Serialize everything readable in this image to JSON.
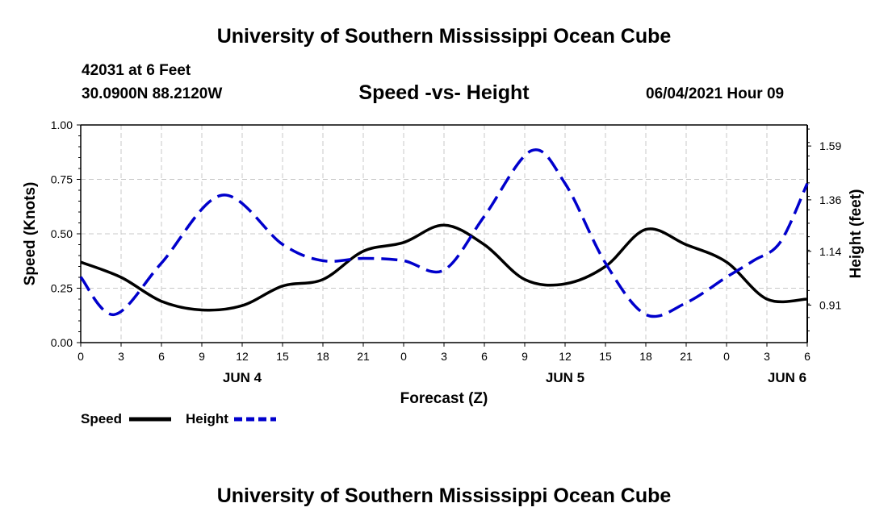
{
  "header": {
    "title": "University of Southern Mississippi Ocean Cube",
    "station": "42031 at 6 Feet",
    "coords": "30.0900N  88.2120W",
    "chart_title": "Speed -vs- Height",
    "datetime": "06/04/2021 Hour 09"
  },
  "footer": {
    "title": "University of Southern Mississippi Ocean Cube"
  },
  "legend": {
    "speed_label": "Speed",
    "height_label": "Height"
  },
  "colors": {
    "speed": "#000000",
    "height": "#0000cc",
    "grid": "#c8c8c8"
  },
  "chart_data": {
    "type": "line",
    "title": "Speed -vs- Height",
    "xlabel": "Forecast (Z)",
    "ylabel": "Speed (Knots)",
    "y2label": "Height (feet)",
    "x_ticks": [
      "0",
      "3",
      "6",
      "9",
      "12",
      "15",
      "18",
      "21",
      "0",
      "3",
      "6",
      "9",
      "12",
      "15",
      "18",
      "21",
      "0",
      "3",
      "6"
    ],
    "date_labels": [
      {
        "label": "JUN 4",
        "hour": 12
      },
      {
        "label": "JUN 5",
        "hour": 36
      },
      {
        "label": "JUN 6",
        "hour": 52.5
      }
    ],
    "xlim": [
      0,
      54
    ],
    "ylim": [
      0,
      1.0
    ],
    "y_ticks": [
      "0.00",
      "0.25",
      "0.50",
      "0.75",
      "1.00"
    ],
    "y2lim": [
      0.75,
      1.68
    ],
    "y2_ticks": [
      "0.91",
      "1.14",
      "1.36",
      "1.59"
    ],
    "grid": true,
    "series": [
      {
        "name": "Speed",
        "axis": "left",
        "style": "solid",
        "x": [
          0,
          3,
          6,
          9,
          12,
          15,
          18,
          21,
          24,
          27,
          30,
          33,
          36,
          39,
          42,
          45,
          48,
          51,
          54
        ],
        "y": [
          0.37,
          0.3,
          0.19,
          0.15,
          0.17,
          0.26,
          0.29,
          0.42,
          0.46,
          0.54,
          0.45,
          0.29,
          0.27,
          0.35,
          0.52,
          0.45,
          0.37,
          0.2,
          0.2
        ]
      },
      {
        "name": "Height",
        "axis": "right",
        "style": "dashed",
        "x": [
          0,
          2.5,
          6,
          10.5,
          15,
          18,
          21,
          24,
          27,
          30,
          33.5,
          36,
          39,
          42,
          45,
          48,
          50,
          52,
          54
        ],
        "y": [
          1.03,
          0.87,
          1.09,
          1.38,
          1.17,
          1.1,
          1.11,
          1.1,
          1.06,
          1.29,
          1.57,
          1.43,
          1.09,
          0.87,
          0.92,
          1.03,
          1.1,
          1.18,
          1.43
        ]
      }
    ]
  }
}
